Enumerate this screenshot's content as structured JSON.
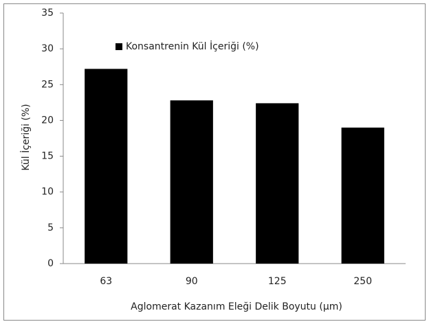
{
  "chart_data": {
    "type": "bar",
    "categories": [
      "63",
      "90",
      "125",
      "250"
    ],
    "values": [
      27.2,
      22.8,
      22.4,
      19.0
    ],
    "color": "#000000",
    "series_name": "Konsantrenin Kül İçeriği (%)",
    "xlabel": "Aglomerat Kazanım Eleği Delik Boyutu (µm)",
    "ylabel": "Kül İçeriği (%)",
    "ylim": [
      0,
      35
    ],
    "yticks": [
      0,
      5,
      10,
      15,
      20,
      25,
      30,
      35
    ],
    "grid": false,
    "legend": "upper left"
  }
}
